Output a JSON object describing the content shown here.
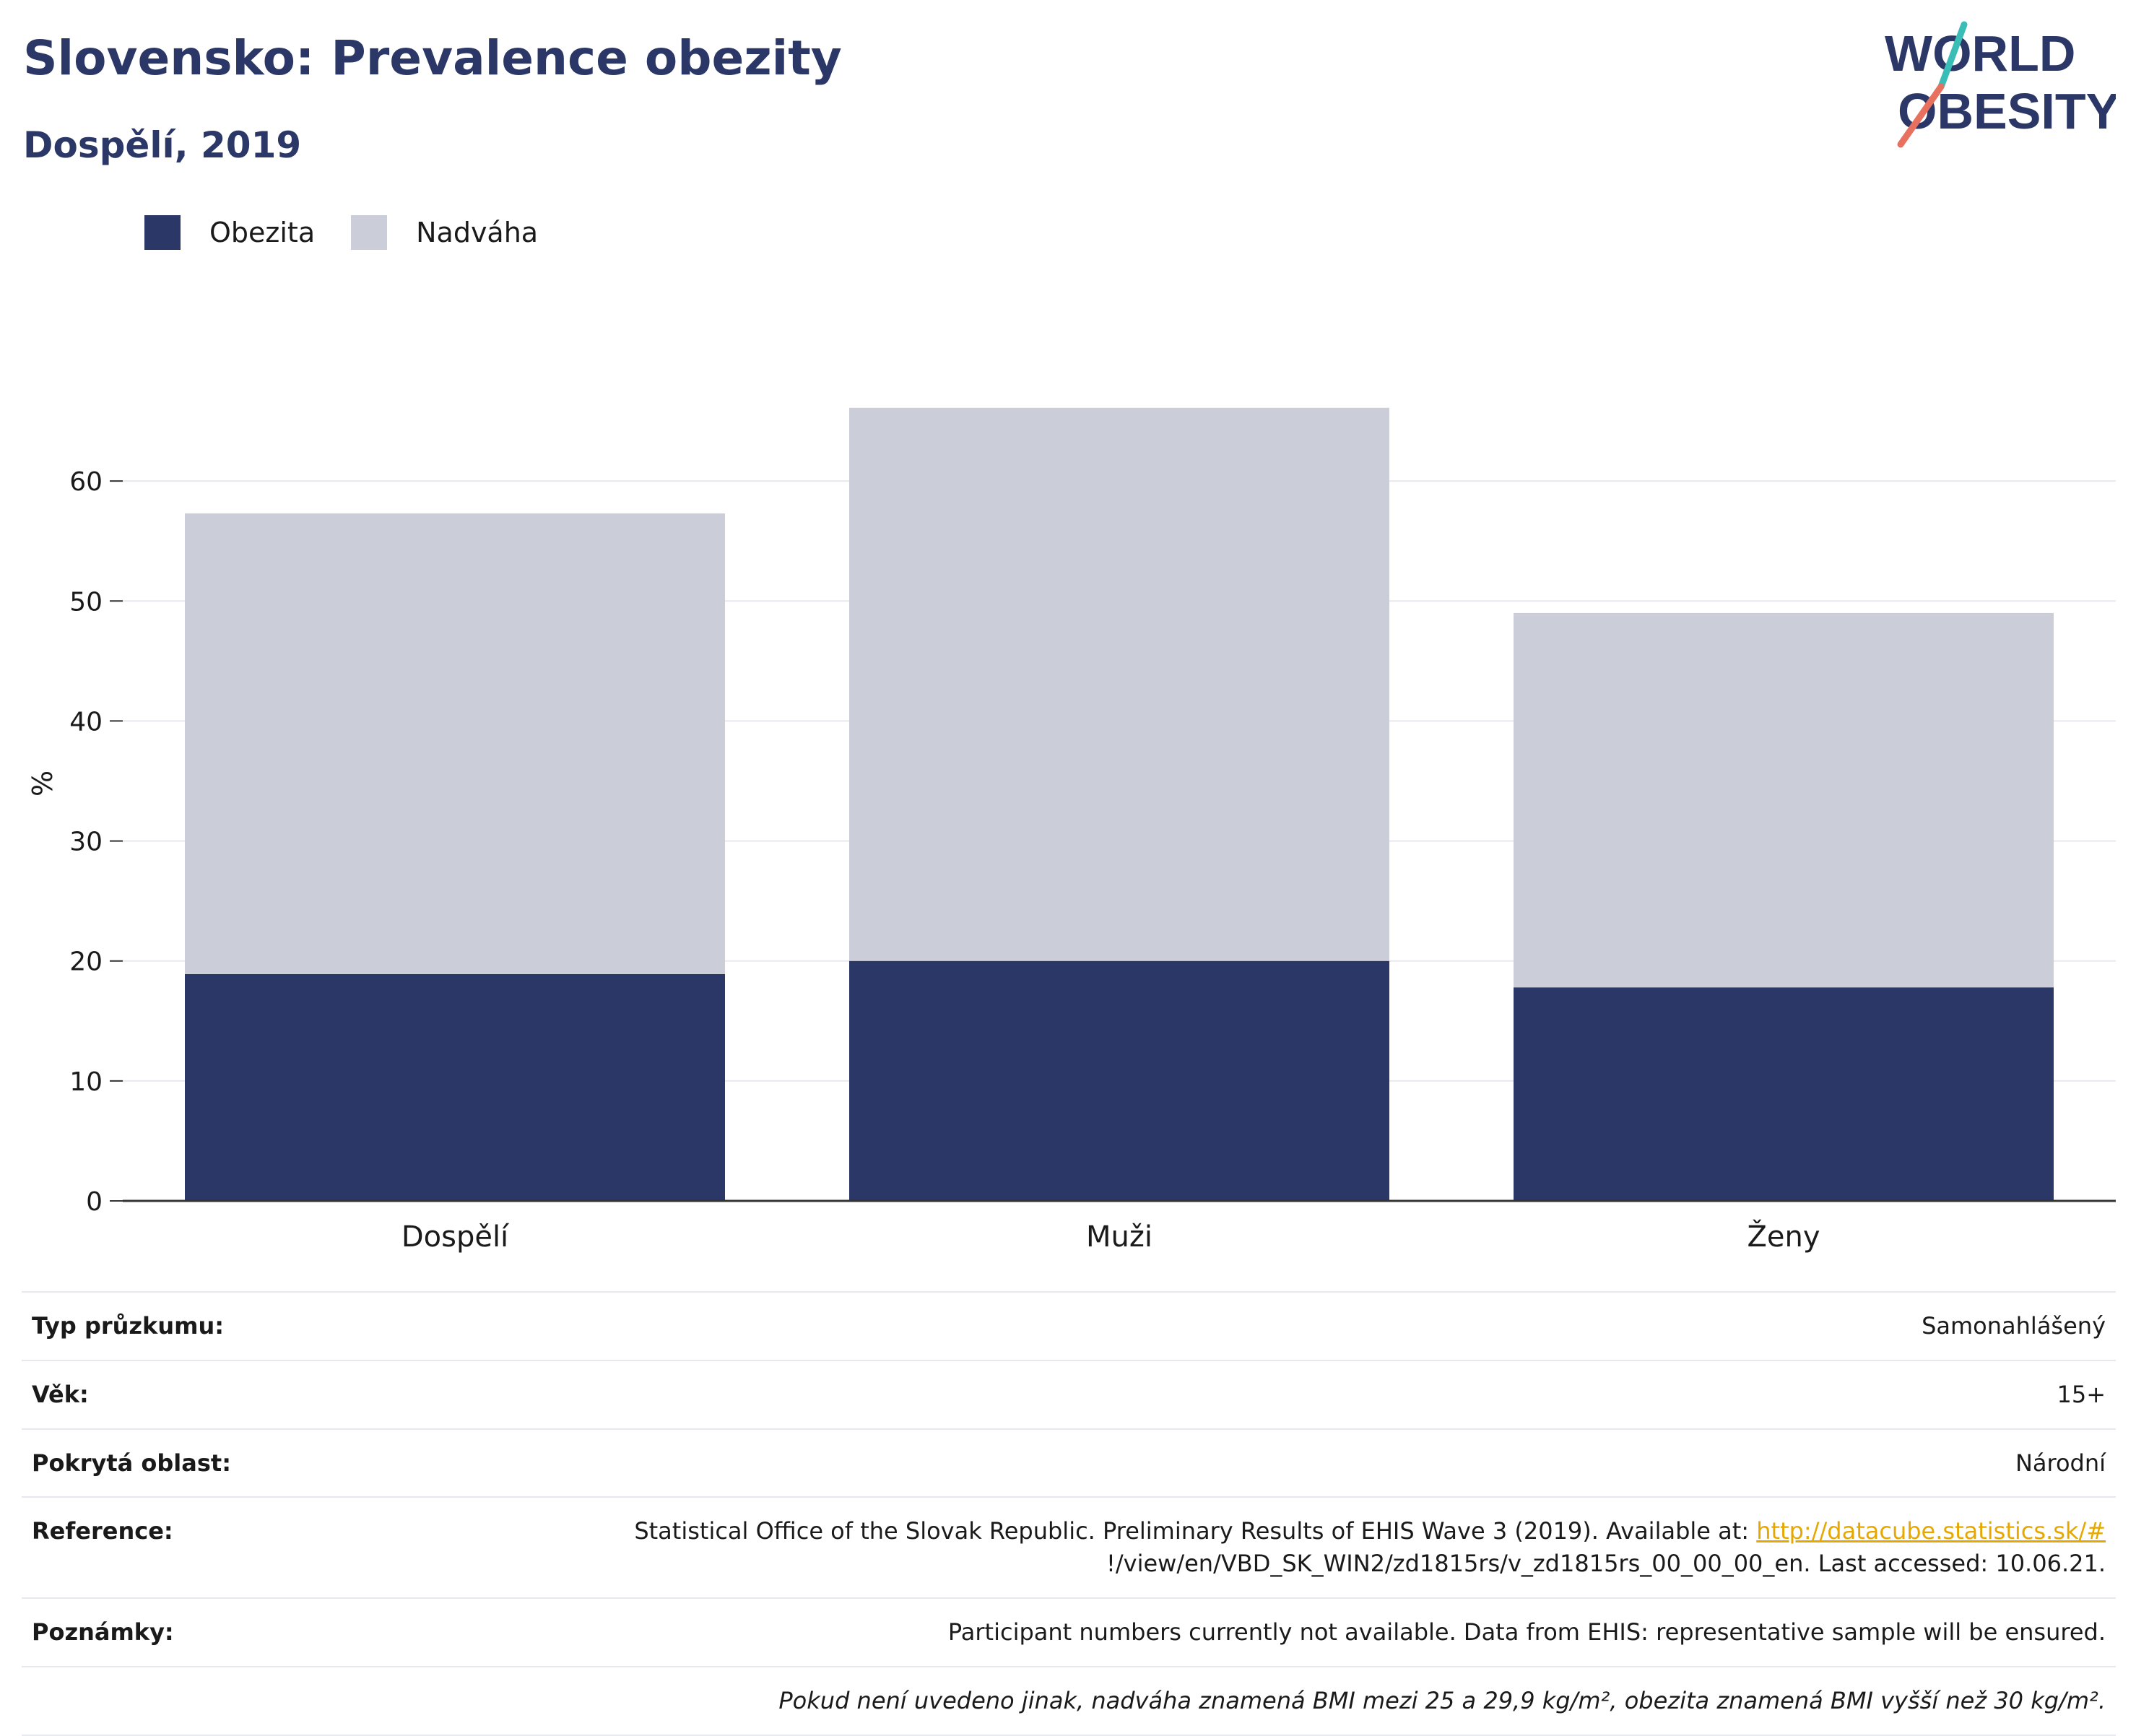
{
  "header": {
    "title": "Slovensko: Prevalence obezity",
    "subtitle": "Dospělí, 2019"
  },
  "logo": {
    "line1": "WORLD",
    "line2": "OBESITY"
  },
  "colors": {
    "obesity": "#2b3766",
    "overweight": "#cbcdd9",
    "brand_title": "#2b3766",
    "logo_teal": "#3bbdb7",
    "logo_coral": "#e8705f",
    "link": "#e6a800"
  },
  "chart_data": {
    "type": "bar",
    "stacked": true,
    "categories": [
      "Dospělí",
      "Muži",
      "Ženy"
    ],
    "series": [
      {
        "name": "Obezita",
        "values": [
          18.9,
          20.0,
          17.8
        ]
      },
      {
        "name": "Nadváha",
        "values": [
          38.4,
          46.1,
          31.2
        ]
      }
    ],
    "ylabel": "%",
    "ylim": [
      0,
      70
    ],
    "yticks": [
      0,
      10,
      20,
      30,
      40,
      50,
      60
    ],
    "grid": true,
    "legend_position": "top-left"
  },
  "info": {
    "rows": [
      {
        "key": "Typ průzkumu:",
        "value": "Samonahlášený"
      },
      {
        "key": "Věk:",
        "value": "15+"
      },
      {
        "key": "Pokrytá oblast:",
        "value": "Národní"
      },
      {
        "key": "Reference:",
        "value_text": "Statistical Office of the Slovak Republic. Preliminary Results of EHIS Wave 3 (2019). Available at: ",
        "value_link": "http://datacube.statistics.sk/#",
        "value_rest": "!/view/en/VBD_SK_WIN2/zd1815rs/v_zd1815rs_00_00_00_en. Last accessed: 10.06.21."
      },
      {
        "key": "Poznámky:",
        "value": "Participant numbers currently not available. Data from EHIS: representative sample will be ensured."
      }
    ],
    "footnote": "Pokud není uvedeno jinak, nadváha znamená BMI mezi 25 a 29,9 kg/m², obezita znamená BMI vyšší než 30 kg/m²."
  }
}
